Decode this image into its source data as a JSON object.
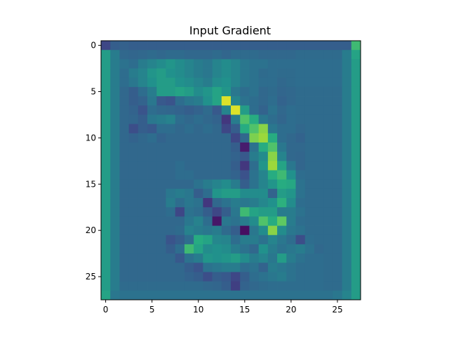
{
  "chart_data": {
    "type": "heatmap",
    "title": "Input Gradient",
    "colormap": "viridis",
    "x_ticks": [
      0,
      5,
      10,
      15,
      20,
      25
    ],
    "y_ticks": [
      0,
      5,
      10,
      15,
      20,
      25
    ],
    "xlim": [
      -0.5,
      27.5
    ],
    "ylim": [
      27.5,
      -0.5
    ],
    "value_range": [
      0,
      1
    ],
    "grid": false,
    "legend": false,
    "rows": 28,
    "cols": 28,
    "values": [
      [
        0.22,
        0.3,
        0.31,
        0.3,
        0.3,
        0.3,
        0.3,
        0.3,
        0.3,
        0.3,
        0.3,
        0.3,
        0.3,
        0.3,
        0.3,
        0.3,
        0.3,
        0.3,
        0.3,
        0.3,
        0.3,
        0.3,
        0.3,
        0.3,
        0.3,
        0.3,
        0.3,
        0.68
      ],
      [
        0.55,
        0.42,
        0.34,
        0.33,
        0.34,
        0.35,
        0.34,
        0.35,
        0.35,
        0.34,
        0.34,
        0.34,
        0.35,
        0.33,
        0.35,
        0.35,
        0.35,
        0.34,
        0.34,
        0.34,
        0.34,
        0.35,
        0.35,
        0.35,
        0.35,
        0.35,
        0.42,
        0.58
      ],
      [
        0.55,
        0.42,
        0.38,
        0.36,
        0.42,
        0.45,
        0.48,
        0.52,
        0.48,
        0.45,
        0.42,
        0.4,
        0.45,
        0.48,
        0.45,
        0.4,
        0.38,
        0.38,
        0.36,
        0.36,
        0.36,
        0.36,
        0.36,
        0.36,
        0.36,
        0.36,
        0.42,
        0.55
      ],
      [
        0.55,
        0.42,
        0.36,
        0.42,
        0.45,
        0.52,
        0.55,
        0.5,
        0.48,
        0.45,
        0.42,
        0.4,
        0.45,
        0.48,
        0.45,
        0.4,
        0.38,
        0.35,
        0.36,
        0.35,
        0.35,
        0.36,
        0.36,
        0.36,
        0.36,
        0.36,
        0.42,
        0.55
      ],
      [
        0.55,
        0.42,
        0.36,
        0.4,
        0.45,
        0.5,
        0.55,
        0.55,
        0.5,
        0.48,
        0.45,
        0.42,
        0.48,
        0.5,
        0.45,
        0.4,
        0.38,
        0.36,
        0.36,
        0.34,
        0.35,
        0.36,
        0.36,
        0.36,
        0.36,
        0.36,
        0.42,
        0.55
      ],
      [
        0.55,
        0.42,
        0.34,
        0.3,
        0.36,
        0.42,
        0.55,
        0.55,
        0.58,
        0.55,
        0.48,
        0.52,
        0.58,
        0.52,
        0.4,
        0.36,
        0.38,
        0.34,
        0.35,
        0.33,
        0.34,
        0.35,
        0.35,
        0.35,
        0.35,
        0.35,
        0.42,
        0.55
      ],
      [
        0.55,
        0.42,
        0.34,
        0.3,
        0.32,
        0.4,
        0.28,
        0.26,
        0.36,
        0.4,
        0.42,
        0.5,
        0.58,
        0.95,
        0.45,
        0.38,
        0.36,
        0.34,
        0.36,
        0.32,
        0.34,
        0.35,
        0.35,
        0.35,
        0.35,
        0.35,
        0.42,
        0.55
      ],
      [
        0.55,
        0.42,
        0.34,
        0.32,
        0.26,
        0.36,
        0.34,
        0.33,
        0.32,
        0.3,
        0.32,
        0.35,
        0.28,
        0.45,
        0.95,
        0.55,
        0.36,
        0.32,
        0.38,
        0.34,
        0.36,
        0.35,
        0.35,
        0.35,
        0.35,
        0.35,
        0.42,
        0.55
      ],
      [
        0.55,
        0.42,
        0.34,
        0.33,
        0.3,
        0.4,
        0.42,
        0.44,
        0.36,
        0.34,
        0.36,
        0.34,
        0.32,
        0.18,
        0.42,
        0.72,
        0.62,
        0.4,
        0.36,
        0.33,
        0.36,
        0.35,
        0.35,
        0.35,
        0.35,
        0.35,
        0.42,
        0.55
      ],
      [
        0.55,
        0.42,
        0.34,
        0.24,
        0.3,
        0.28,
        0.36,
        0.36,
        0.34,
        0.36,
        0.34,
        0.36,
        0.34,
        0.22,
        0.3,
        0.62,
        0.72,
        0.82,
        0.4,
        0.36,
        0.36,
        0.34,
        0.35,
        0.35,
        0.35,
        0.35,
        0.42,
        0.55
      ],
      [
        0.55,
        0.42,
        0.34,
        0.32,
        0.34,
        0.36,
        0.32,
        0.34,
        0.34,
        0.34,
        0.34,
        0.34,
        0.34,
        0.34,
        0.22,
        0.34,
        0.8,
        0.85,
        0.62,
        0.36,
        0.34,
        0.32,
        0.35,
        0.35,
        0.35,
        0.35,
        0.42,
        0.55
      ],
      [
        0.55,
        0.42,
        0.34,
        0.34,
        0.34,
        0.34,
        0.34,
        0.34,
        0.34,
        0.34,
        0.34,
        0.34,
        0.34,
        0.34,
        0.3,
        0.1,
        0.38,
        0.62,
        0.72,
        0.4,
        0.34,
        0.34,
        0.35,
        0.35,
        0.35,
        0.35,
        0.42,
        0.55
      ],
      [
        0.55,
        0.42,
        0.34,
        0.34,
        0.34,
        0.34,
        0.34,
        0.34,
        0.34,
        0.34,
        0.34,
        0.34,
        0.34,
        0.34,
        0.32,
        0.28,
        0.42,
        0.48,
        0.82,
        0.45,
        0.34,
        0.33,
        0.35,
        0.35,
        0.35,
        0.35,
        0.42,
        0.55
      ],
      [
        0.55,
        0.42,
        0.34,
        0.34,
        0.34,
        0.34,
        0.34,
        0.34,
        0.36,
        0.34,
        0.34,
        0.34,
        0.34,
        0.34,
        0.3,
        0.18,
        0.36,
        0.52,
        0.85,
        0.58,
        0.4,
        0.33,
        0.35,
        0.35,
        0.35,
        0.35,
        0.42,
        0.55
      ],
      [
        0.55,
        0.42,
        0.34,
        0.34,
        0.34,
        0.34,
        0.34,
        0.34,
        0.36,
        0.36,
        0.34,
        0.34,
        0.34,
        0.34,
        0.32,
        0.25,
        0.38,
        0.45,
        0.62,
        0.68,
        0.5,
        0.36,
        0.35,
        0.35,
        0.35,
        0.35,
        0.42,
        0.55
      ],
      [
        0.55,
        0.42,
        0.34,
        0.34,
        0.34,
        0.34,
        0.34,
        0.34,
        0.34,
        0.34,
        0.38,
        0.42,
        0.45,
        0.48,
        0.42,
        0.3,
        0.38,
        0.45,
        0.52,
        0.62,
        0.6,
        0.38,
        0.35,
        0.35,
        0.35,
        0.35,
        0.42,
        0.55
      ],
      [
        0.55,
        0.42,
        0.34,
        0.34,
        0.34,
        0.34,
        0.34,
        0.4,
        0.42,
        0.4,
        0.3,
        0.36,
        0.52,
        0.55,
        0.55,
        0.48,
        0.48,
        0.48,
        0.32,
        0.55,
        0.52,
        0.38,
        0.35,
        0.35,
        0.35,
        0.35,
        0.42,
        0.55
      ],
      [
        0.55,
        0.42,
        0.34,
        0.34,
        0.34,
        0.34,
        0.34,
        0.42,
        0.36,
        0.4,
        0.38,
        0.18,
        0.34,
        0.38,
        0.42,
        0.4,
        0.42,
        0.46,
        0.5,
        0.64,
        0.48,
        0.36,
        0.35,
        0.35,
        0.35,
        0.35,
        0.42,
        0.55
      ],
      [
        0.55,
        0.42,
        0.34,
        0.34,
        0.34,
        0.34,
        0.34,
        0.36,
        0.22,
        0.38,
        0.36,
        0.3,
        0.22,
        0.3,
        0.4,
        0.68,
        0.58,
        0.55,
        0.55,
        0.42,
        0.42,
        0.38,
        0.35,
        0.35,
        0.35,
        0.35,
        0.42,
        0.55
      ],
      [
        0.55,
        0.42,
        0.34,
        0.34,
        0.34,
        0.34,
        0.34,
        0.34,
        0.34,
        0.4,
        0.44,
        0.36,
        0.08,
        0.4,
        0.38,
        0.42,
        0.48,
        0.72,
        0.62,
        0.75,
        0.42,
        0.36,
        0.35,
        0.35,
        0.35,
        0.35,
        0.42,
        0.55
      ],
      [
        0.55,
        0.42,
        0.34,
        0.34,
        0.34,
        0.34,
        0.34,
        0.34,
        0.35,
        0.44,
        0.42,
        0.4,
        0.42,
        0.35,
        0.3,
        0.05,
        0.4,
        0.48,
        0.82,
        0.48,
        0.4,
        0.38,
        0.35,
        0.35,
        0.35,
        0.35,
        0.42,
        0.55
      ],
      [
        0.55,
        0.42,
        0.34,
        0.34,
        0.34,
        0.34,
        0.34,
        0.26,
        0.3,
        0.36,
        0.62,
        0.58,
        0.46,
        0.45,
        0.36,
        0.42,
        0.42,
        0.38,
        0.45,
        0.4,
        0.36,
        0.24,
        0.36,
        0.35,
        0.35,
        0.35,
        0.42,
        0.55
      ],
      [
        0.55,
        0.42,
        0.34,
        0.34,
        0.34,
        0.34,
        0.34,
        0.3,
        0.36,
        0.68,
        0.58,
        0.48,
        0.5,
        0.48,
        0.42,
        0.38,
        0.34,
        0.5,
        0.42,
        0.38,
        0.4,
        0.42,
        0.38,
        0.34,
        0.35,
        0.35,
        0.42,
        0.55
      ],
      [
        0.55,
        0.42,
        0.34,
        0.34,
        0.34,
        0.34,
        0.34,
        0.34,
        0.28,
        0.38,
        0.42,
        0.52,
        0.5,
        0.52,
        0.55,
        0.48,
        0.42,
        0.45,
        0.4,
        0.55,
        0.42,
        0.38,
        0.36,
        0.36,
        0.35,
        0.35,
        0.42,
        0.55
      ],
      [
        0.55,
        0.42,
        0.34,
        0.34,
        0.34,
        0.34,
        0.34,
        0.34,
        0.34,
        0.3,
        0.26,
        0.38,
        0.4,
        0.42,
        0.42,
        0.36,
        0.38,
        0.32,
        0.42,
        0.4,
        0.38,
        0.36,
        0.36,
        0.36,
        0.35,
        0.35,
        0.42,
        0.55
      ],
      [
        0.55,
        0.42,
        0.34,
        0.34,
        0.34,
        0.34,
        0.34,
        0.34,
        0.34,
        0.32,
        0.3,
        0.24,
        0.3,
        0.28,
        0.22,
        0.3,
        0.36,
        0.38,
        0.4,
        0.42,
        0.38,
        0.36,
        0.36,
        0.36,
        0.35,
        0.35,
        0.42,
        0.55
      ],
      [
        0.55,
        0.42,
        0.35,
        0.35,
        0.35,
        0.35,
        0.35,
        0.35,
        0.35,
        0.35,
        0.35,
        0.34,
        0.33,
        0.3,
        0.2,
        0.32,
        0.34,
        0.35,
        0.36,
        0.36,
        0.36,
        0.36,
        0.36,
        0.36,
        0.35,
        0.35,
        0.42,
        0.55
      ],
      [
        0.58,
        0.4,
        0.38,
        0.38,
        0.38,
        0.38,
        0.38,
        0.38,
        0.38,
        0.38,
        0.38,
        0.38,
        0.38,
        0.38,
        0.38,
        0.38,
        0.38,
        0.38,
        0.38,
        0.38,
        0.38,
        0.38,
        0.38,
        0.38,
        0.38,
        0.4,
        0.45,
        0.55
      ]
    ]
  }
}
